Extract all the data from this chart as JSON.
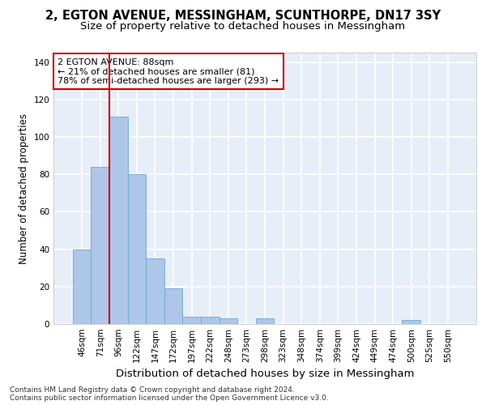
{
  "title1": "2, EGTON AVENUE, MESSINGHAM, SCUNTHORPE, DN17 3SY",
  "title2": "Size of property relative to detached houses in Messingham",
  "xlabel": "Distribution of detached houses by size in Messingham",
  "ylabel": "Number of detached properties",
  "bar_labels": [
    "46sqm",
    "71sqm",
    "96sqm",
    "122sqm",
    "147sqm",
    "172sqm",
    "197sqm",
    "222sqm",
    "248sqm",
    "273sqm",
    "298sqm",
    "323sqm",
    "348sqm",
    "374sqm",
    "399sqm",
    "424sqm",
    "449sqm",
    "474sqm",
    "500sqm",
    "525sqm",
    "550sqm"
  ],
  "bar_values": [
    40,
    84,
    111,
    80,
    35,
    19,
    4,
    4,
    3,
    0,
    3,
    0,
    0,
    0,
    0,
    0,
    0,
    0,
    2,
    0,
    0
  ],
  "bar_color": "#aec6e8",
  "bar_edge_color": "#6aaad4",
  "vline_x": 1.5,
  "vline_color": "#cc0000",
  "annotation_box_text": "2 EGTON AVENUE: 88sqm\n← 21% of detached houses are smaller (81)\n78% of semi-detached houses are larger (293) →",
  "ylim": [
    0,
    145
  ],
  "yticks": [
    0,
    20,
    40,
    60,
    80,
    100,
    120,
    140
  ],
  "footnote": "Contains HM Land Registry data © Crown copyright and database right 2024.\nContains public sector information licensed under the Open Government Licence v3.0.",
  "bg_color": "#e8eef8",
  "grid_color": "#ffffff",
  "title_fontsize": 10.5,
  "subtitle_fontsize": 9.5,
  "axis_label_fontsize": 8.5,
  "tick_fontsize": 7.5,
  "annotation_fontsize": 8,
  "footnote_fontsize": 6.5
}
